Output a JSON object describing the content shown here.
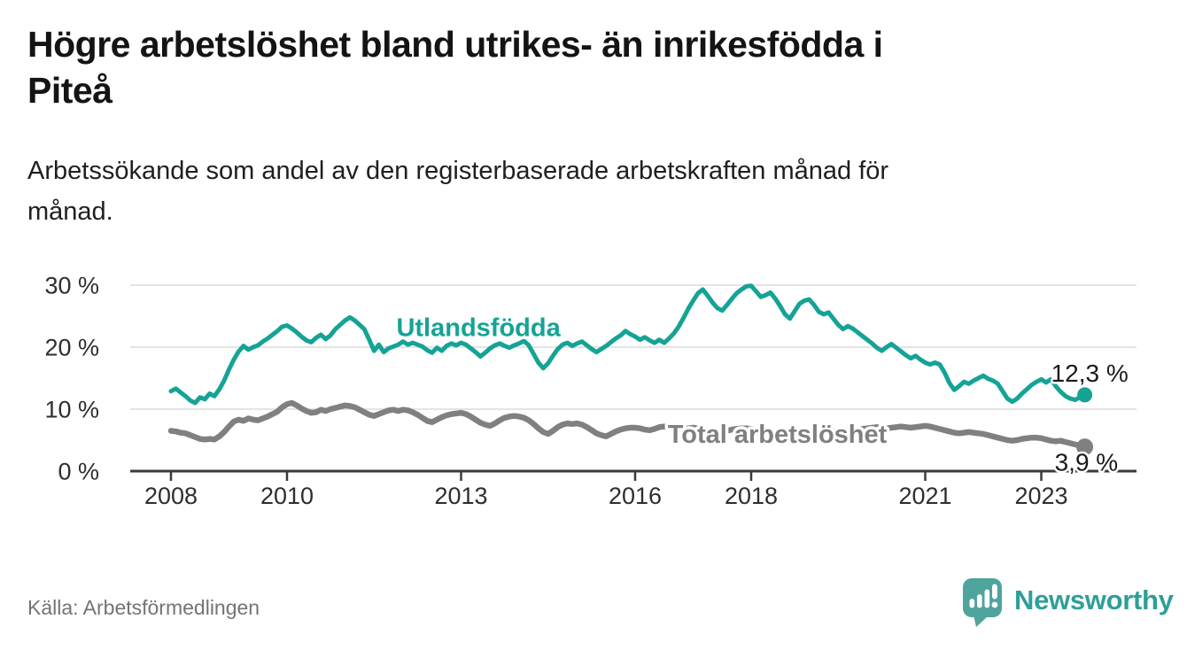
{
  "header": {
    "title_lines": "Högre arbetslöshet bland utrikes- än inrikesfödda i\nPiteå",
    "subtitle_lines": "Arbetssökande som andel av den registerbaserade arbetskraften månad för\nmånad."
  },
  "footer": {
    "source": "Källa: Arbetsförmedlingen",
    "brand": "Newsworthy",
    "brand_color": "#2e9f98",
    "logo_color": "#4fa49d"
  },
  "chart_data": {
    "type": "line",
    "title": "Högre arbetslöshet bland utrikes- än inrikesfödda i Piteå",
    "subtitle": "Arbetssökande som andel av den registerbaserade arbetskraften månad för månad.",
    "x_axis": {
      "ticks": [
        2008,
        2010,
        2013,
        2016,
        2018,
        2021,
        2023
      ],
      "range": [
        2007.3,
        2024.6
      ],
      "unit": "year_monthly_data"
    },
    "y_axis": {
      "ticks": [
        {
          "value": 0,
          "label": "0 %"
        },
        {
          "value": 10,
          "label": "10 %"
        },
        {
          "value": 20,
          "label": "20 %"
        },
        {
          "value": 30,
          "label": "30 %"
        }
      ],
      "gridlines": [
        10,
        20,
        30
      ],
      "range": [
        0,
        33
      ]
    },
    "grid_color": "#dcdcdc",
    "axis_color": "#3a3a3a",
    "legend_position": "inline-labels",
    "series": [
      {
        "name": "Utlandsfödda",
        "color": "#15a396",
        "end_label": "12,3 %",
        "end_value": 12.3,
        "label_pos": {
          "x": 2013.3,
          "y": 23.2
        },
        "start_x": 2008,
        "points_per_year": 12,
        "values": [
          12.9,
          13.3,
          12.7,
          12.1,
          11.4,
          11.0,
          11.9,
          11.6,
          12.5,
          12.1,
          13.2,
          14.6,
          16.4,
          18.0,
          19.3,
          20.2,
          19.6,
          20.0,
          20.3,
          20.9,
          21.4,
          22.0,
          22.6,
          23.3,
          23.5,
          23.0,
          22.4,
          21.7,
          21.1,
          20.8,
          21.5,
          22.0,
          21.3,
          21.9,
          22.9,
          23.6,
          24.3,
          24.8,
          24.3,
          23.6,
          22.9,
          21.2,
          19.4,
          20.4,
          19.2,
          19.8,
          20.1,
          20.4,
          20.9,
          20.4,
          20.7,
          20.4,
          20.1,
          19.5,
          19.1,
          19.9,
          19.4,
          20.2,
          20.6,
          20.3,
          20.7,
          20.4,
          19.8,
          19.2,
          18.5,
          19.1,
          19.8,
          20.3,
          20.6,
          20.2,
          19.9,
          20.3,
          20.6,
          21.0,
          20.3,
          18.9,
          17.5,
          16.6,
          17.4,
          18.6,
          19.7,
          20.4,
          20.7,
          20.2,
          20.6,
          20.9,
          20.3,
          19.7,
          19.2,
          19.7,
          20.2,
          20.8,
          21.4,
          21.9,
          22.6,
          22.1,
          21.7,
          21.2,
          21.6,
          21.1,
          20.7,
          21.2,
          20.7,
          21.4,
          22.2,
          23.3,
          24.7,
          26.2,
          27.5,
          28.7,
          29.3,
          28.3,
          27.2,
          26.3,
          25.9,
          26.8,
          27.8,
          28.7,
          29.3,
          29.8,
          29.9,
          29.0,
          28.1,
          28.4,
          28.8,
          27.8,
          26.6,
          25.3,
          24.6,
          25.8,
          27.0,
          27.5,
          27.7,
          26.8,
          25.7,
          25.3,
          25.6,
          24.6,
          23.6,
          22.9,
          23.4,
          23.0,
          22.4,
          21.8,
          21.2,
          20.6,
          19.9,
          19.4,
          20.0,
          20.5,
          19.9,
          19.3,
          18.7,
          18.2,
          18.6,
          18.0,
          17.5,
          17.2,
          17.5,
          17.2,
          15.9,
          14.2,
          13.1,
          13.7,
          14.4,
          14.1,
          14.6,
          15.0,
          15.4,
          14.9,
          14.6,
          14.1,
          12.9,
          11.7,
          11.2,
          11.7,
          12.5,
          13.2,
          13.9,
          14.4,
          14.8,
          14.3,
          14.8,
          13.7,
          12.8,
          12.1,
          11.7,
          11.5,
          11.9,
          12.3
        ]
      },
      {
        "name": "Total arbetslöshet",
        "color": "#808080",
        "end_label": "3,9 %",
        "end_value": 3.9,
        "label_pos": {
          "x": 2018.45,
          "y": 6.0
        },
        "start_x": 2008,
        "points_per_year": 12,
        "values": [
          6.5,
          6.4,
          6.2,
          6.1,
          5.8,
          5.5,
          5.2,
          5.1,
          5.2,
          5.1,
          5.6,
          6.3,
          7.2,
          8.0,
          8.3,
          8.1,
          8.5,
          8.3,
          8.2,
          8.5,
          8.8,
          9.2,
          9.6,
          10.3,
          10.8,
          11.0,
          10.6,
          10.1,
          9.7,
          9.4,
          9.5,
          9.9,
          9.7,
          10.0,
          10.2,
          10.4,
          10.6,
          10.5,
          10.3,
          9.9,
          9.5,
          9.1,
          8.9,
          9.2,
          9.5,
          9.8,
          9.9,
          9.7,
          9.9,
          9.8,
          9.5,
          9.1,
          8.6,
          8.1,
          7.9,
          8.3,
          8.7,
          9.0,
          9.2,
          9.3,
          9.4,
          9.2,
          8.8,
          8.3,
          7.8,
          7.5,
          7.3,
          7.7,
          8.2,
          8.6,
          8.8,
          8.9,
          8.8,
          8.6,
          8.2,
          7.6,
          6.9,
          6.3,
          6.0,
          6.5,
          7.1,
          7.5,
          7.7,
          7.6,
          7.7,
          7.5,
          7.1,
          6.6,
          6.1,
          5.8,
          5.6,
          6.0,
          6.4,
          6.7,
          6.9,
          7.0,
          7.0,
          6.9,
          6.7,
          6.6,
          6.8,
          7.1,
          7.2,
          7.0,
          6.8,
          6.7,
          6.8,
          6.9,
          7.0,
          6.9,
          6.7,
          6.5,
          6.3,
          6.2,
          6.3,
          6.5,
          6.7,
          6.8,
          6.9,
          6.9,
          6.8,
          6.7,
          6.5,
          6.3,
          6.2,
          6.3,
          6.4,
          6.5,
          6.6,
          6.6,
          6.5,
          6.4,
          6.4,
          6.3,
          6.2,
          6.2,
          6.3,
          6.4,
          6.5,
          6.6,
          6.6,
          6.6,
          6.7,
          6.8,
          6.9,
          7.0,
          7.1,
          7.0,
          6.9,
          7.0,
          7.1,
          7.2,
          7.1,
          7.0,
          7.1,
          7.2,
          7.3,
          7.2,
          7.0,
          6.8,
          6.6,
          6.4,
          6.2,
          6.1,
          6.2,
          6.3,
          6.2,
          6.1,
          6.0,
          5.8,
          5.6,
          5.4,
          5.2,
          5.0,
          4.9,
          5.0,
          5.2,
          5.3,
          5.4,
          5.4,
          5.3,
          5.1,
          4.9,
          4.8,
          4.9,
          4.7,
          4.5,
          4.3,
          4.1,
          3.9
        ]
      }
    ]
  }
}
